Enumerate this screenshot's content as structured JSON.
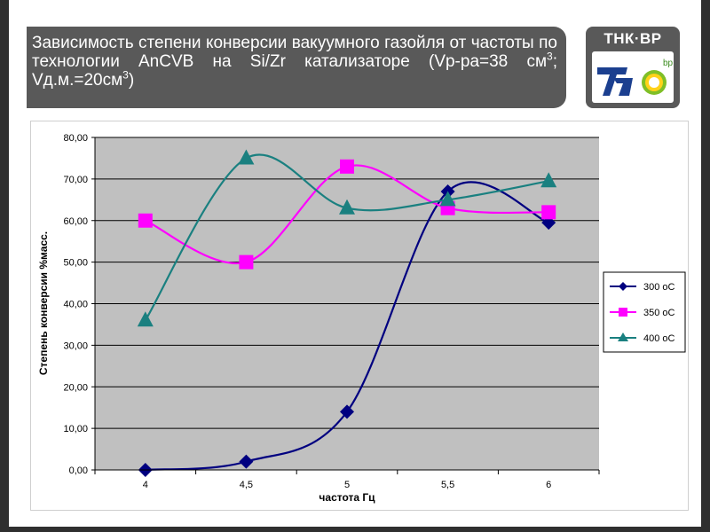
{
  "slide": {
    "title_main": "Зависимость степени конверсии вакуумного газойля от частоты по технологии AnCVB на Si/Zr катализаторе (Vp-ра=38 см",
    "title_sup1": "3",
    "title_mid": "; Vд.м.=20см",
    "title_sup2": "3",
    "title_end": ")",
    "logo_text": "ТНК·BP",
    "logo_bp": "bp"
  },
  "colors": {
    "series_300": "#000080",
    "series_350": "#ff00ff",
    "series_400": "#1a8080",
    "plot_bg": "#c0c0c0",
    "title_bg": "#595959"
  },
  "chart_data": {
    "type": "line",
    "smooth": true,
    "x": [
      "4",
      "4,5",
      "5",
      "5,5",
      "6"
    ],
    "xlabel": "частота Гц",
    "ylabel": "Степень конверсии %масс.",
    "ylim": [
      0,
      80
    ],
    "yticks": [
      "0,00",
      "10,00",
      "20,00",
      "30,00",
      "40,00",
      "50,00",
      "60,00",
      "70,00",
      "80,00"
    ],
    "grid": true,
    "legend": "right",
    "series": [
      {
        "name": "300 оС",
        "marker": "diamond",
        "values": [
          0,
          2,
          14,
          67,
          59.5
        ]
      },
      {
        "name": "350 оС",
        "marker": "square",
        "values": [
          60,
          50,
          73,
          63,
          62
        ]
      },
      {
        "name": "400 оС",
        "marker": "triangle",
        "values": [
          36,
          75,
          63,
          65,
          69.5
        ]
      }
    ]
  }
}
